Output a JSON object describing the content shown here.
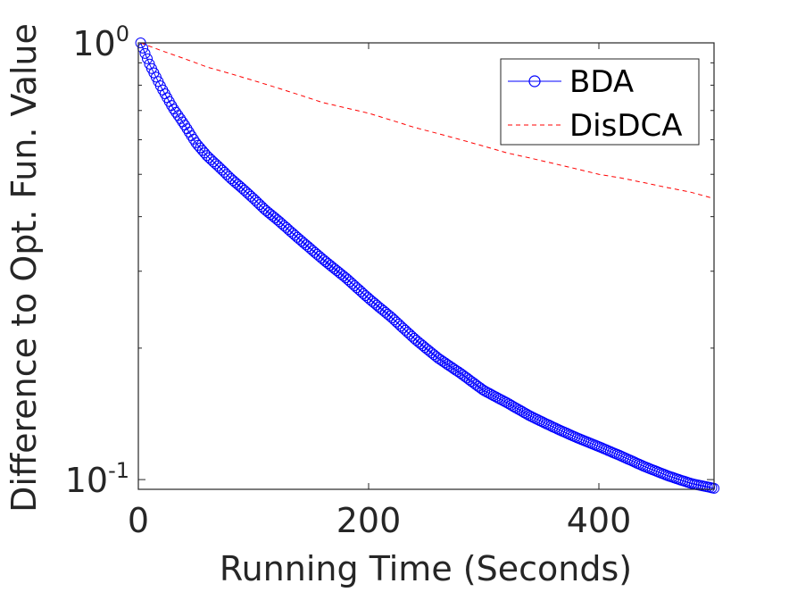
{
  "chart_data": {
    "type": "line",
    "xlabel": "Running Time (Seconds)",
    "ylabel": "Difference to Opt. Fun. Value",
    "xlim": [
      0,
      500
    ],
    "ylim": [
      0.095,
      1.0
    ],
    "yscale": "log",
    "xticks": [
      0,
      200,
      400
    ],
    "xtick_labels": [
      "0",
      "200",
      "400"
    ],
    "yticks": [
      {
        "value": 1.0,
        "base": "10",
        "exp": "0"
      },
      {
        "value": 0.1,
        "base": "10",
        "exp": "-1"
      }
    ],
    "grid": false,
    "legend": "top-right",
    "series": [
      {
        "name": "BDA",
        "style": "solid-circle",
        "color": "#0000ff",
        "x": [
          2,
          10,
          20,
          30,
          40,
          50,
          60,
          70,
          80,
          90,
          100,
          110,
          120,
          140,
          160,
          180,
          200,
          220,
          240,
          260,
          280,
          300,
          320,
          340,
          360,
          380,
          400,
          420,
          440,
          460,
          480,
          500
        ],
        "y": [
          1.0,
          0.89,
          0.79,
          0.71,
          0.65,
          0.59,
          0.55,
          0.52,
          0.49,
          0.465,
          0.44,
          0.415,
          0.395,
          0.355,
          0.32,
          0.29,
          0.26,
          0.235,
          0.21,
          0.19,
          0.175,
          0.16,
          0.15,
          0.14,
          0.132,
          0.125,
          0.119,
          0.113,
          0.107,
          0.102,
          0.098,
          0.0955
        ]
      },
      {
        "name": "DisDCA",
        "style": "dashed",
        "color": "#ff0000",
        "x": [
          2,
          20,
          40,
          60,
          80,
          100,
          120,
          140,
          160,
          180,
          200,
          220,
          240,
          260,
          280,
          300,
          320,
          340,
          360,
          380,
          400,
          420,
          440,
          460,
          480,
          500
        ],
        "y": [
          1.0,
          0.96,
          0.92,
          0.88,
          0.85,
          0.82,
          0.79,
          0.76,
          0.73,
          0.71,
          0.69,
          0.665,
          0.64,
          0.62,
          0.6,
          0.58,
          0.56,
          0.545,
          0.53,
          0.515,
          0.5,
          0.49,
          0.478,
          0.466,
          0.455,
          0.44
        ]
      }
    ]
  }
}
